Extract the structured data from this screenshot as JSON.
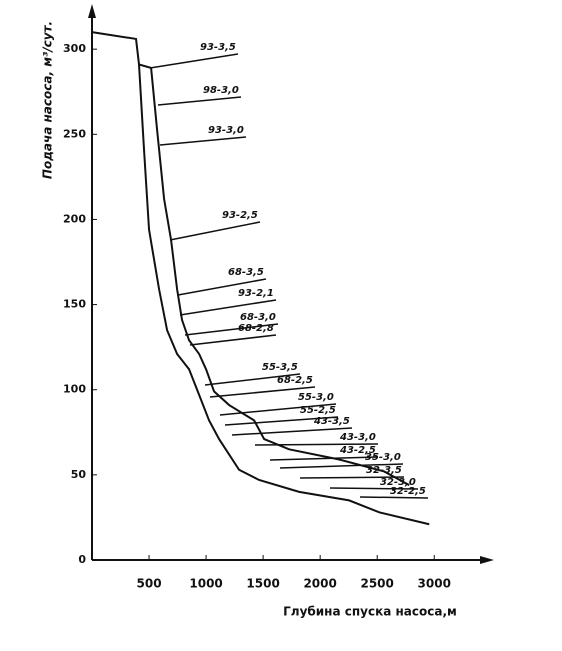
{
  "chart_data": {
    "type": "line",
    "y_label": "Подача насоса, м³/сут.",
    "x_label": "Глубина спуска насоса,м",
    "xlim": [
      0,
      3480
    ],
    "ylim": [
      0,
      323
    ],
    "xticks": [
      500,
      1000,
      1500,
      2000,
      2500,
      3000
    ],
    "yticks": [
      0,
      50,
      100,
      150,
      200,
      250,
      300
    ],
    "series": [
      {
        "color": "#111111",
        "x": [
          0,
          386,
          412,
          518,
          570,
          632,
          693,
          746,
          789,
          851,
          939,
          1000,
          1070,
          1202,
          1421,
          1509,
          1728,
          2167,
          2561,
          2781
        ],
        "values": [
          310,
          306,
          291,
          289,
          253,
          212,
          188,
          159,
          141,
          129,
          121,
          112,
          99,
          91,
          82,
          71,
          65,
          59,
          52,
          44
        ]
      },
      {
        "color": "#111111",
        "x": [
          412,
          456,
          500,
          588,
          658,
          746,
          851,
          939,
          1026,
          1114,
          1289,
          1465,
          1816,
          2254,
          2518,
          2956
        ],
        "values": [
          291,
          241,
          194,
          159,
          135,
          121,
          112,
          97,
          82,
          71,
          53,
          47,
          40,
          35,
          28,
          21
        ]
      }
    ],
    "annotations": [
      "93-3,5",
      "98-3,0",
      "93-3,0",
      "93-2,5",
      "68-3,5",
      "93-2,1",
      "68-3,0",
      "68-2,8",
      "55-3,5",
      "68-2,5",
      "55-3,0",
      "55-2,5",
      "43-3,5",
      "43-3,0",
      "43-2,5",
      "35-3,0",
      "32-3,5",
      "32-3,0",
      "32-2,5"
    ]
  }
}
